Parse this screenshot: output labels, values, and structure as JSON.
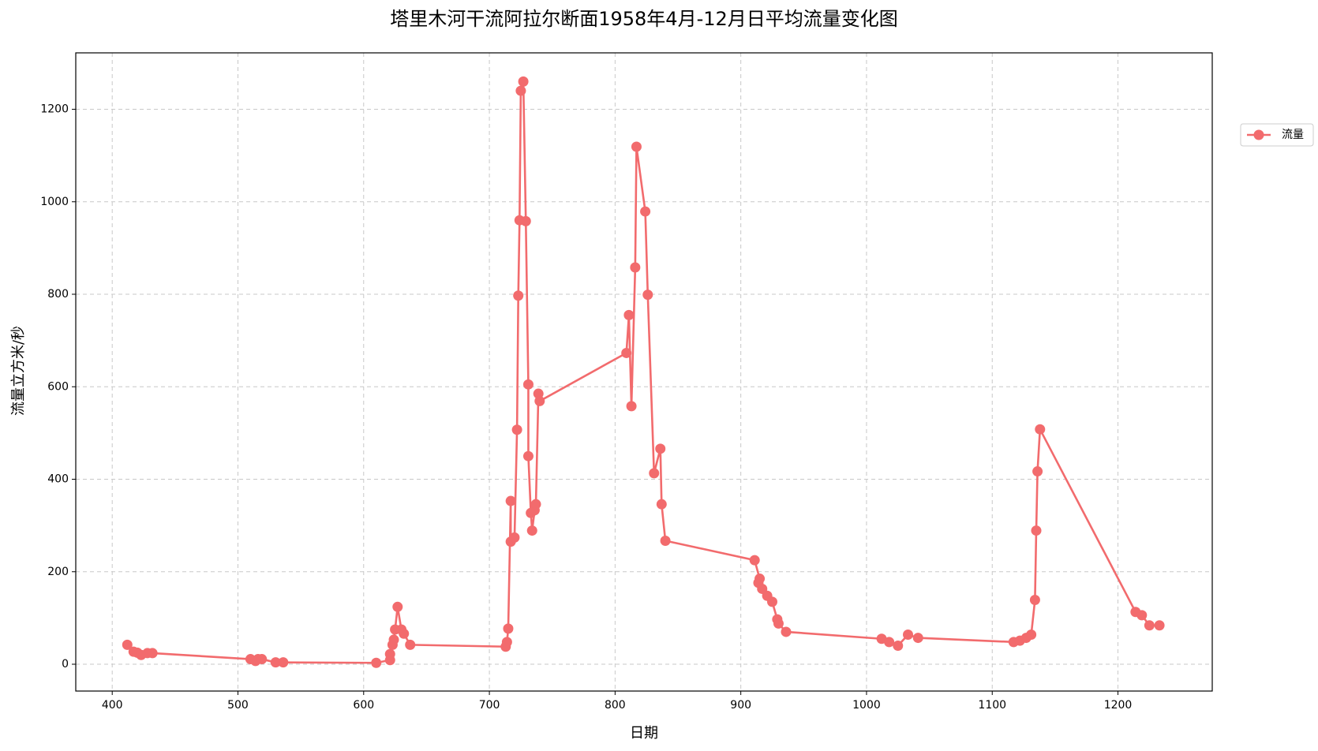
{
  "chart_data": {
    "type": "line",
    "title": "塔里木河干流阿拉尔断面1958年4月-12月日平均流量变化图",
    "x_label": "日期",
    "y_label": "流量立方米/秒",
    "x": [
      412,
      417,
      420,
      423,
      428,
      432,
      510,
      514,
      516,
      519,
      530,
      536,
      610,
      621,
      621,
      623,
      624,
      625,
      627,
      630,
      632,
      637,
      713,
      714,
      715,
      717,
      717,
      720,
      722,
      723,
      724,
      725,
      727,
      729,
      731,
      731,
      733,
      734,
      736,
      737,
      739,
      740,
      809,
      811,
      813,
      816,
      817,
      824,
      826,
      831,
      836,
      837,
      840,
      911,
      915,
      914,
      917,
      921,
      925,
      929,
      930,
      936,
      1012,
      1018,
      1025,
      1033,
      1041,
      1117,
      1122,
      1127,
      1131,
      1134,
      1135,
      1136,
      1138,
      1214,
      1219,
      1225,
      1233
    ],
    "series": [
      {
        "name": "流量",
        "color": "#f26b6d",
        "values": [
          42,
          27,
          25,
          20,
          24,
          24,
          11,
          7,
          11,
          11,
          4,
          4,
          3,
          9,
          22,
          42,
          53,
          75,
          124,
          75,
          66,
          42,
          38,
          48,
          77,
          353,
          265,
          274,
          507,
          797,
          960,
          1240,
          1260,
          958,
          605,
          450,
          327,
          289,
          333,
          346,
          585,
          569,
          673,
          755,
          558,
          858,
          1119,
          979,
          799,
          413,
          466,
          346,
          267,
          225,
          185,
          176,
          163,
          148,
          135,
          97,
          88,
          70,
          55,
          48,
          40,
          64,
          57,
          48,
          51,
          57,
          64,
          139,
          289,
          417,
          508,
          113,
          106,
          84,
          84
        ]
      }
    ],
    "xlim": [
      371,
      1275
    ],
    "ylim": [
      -58,
      1322
    ],
    "xticks": [
      400,
      500,
      600,
      700,
      800,
      900,
      1000,
      1100,
      1200
    ],
    "yticks": [
      0,
      200,
      400,
      600,
      800,
      1000,
      1200
    ],
    "grid": true,
    "legend": "upper right outside"
  }
}
